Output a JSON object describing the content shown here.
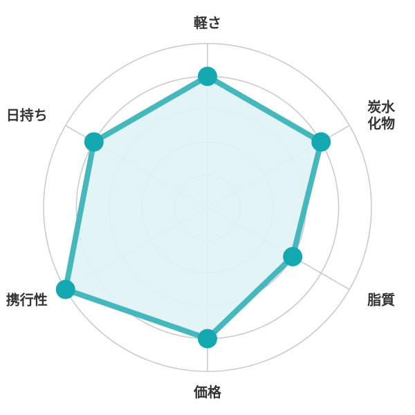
{
  "chart_data": {
    "type": "radar",
    "title": "",
    "axes": [
      {
        "label": [
          "軽さ"
        ]
      },
      {
        "label": [
          "炭水",
          "化物"
        ]
      },
      {
        "label": [
          "脂質"
        ]
      },
      {
        "label": [
          "価格"
        ]
      },
      {
        "label": [
          "携行性"
        ]
      },
      {
        "label": [
          "日持ち"
        ]
      }
    ],
    "rlim": [
      0,
      5
    ],
    "ring_count": 5,
    "series": [
      {
        "values": [
          4,
          4,
          3,
          4,
          5,
          4
        ]
      }
    ],
    "colors": {
      "line": "#45b8bd",
      "fill": "#dff3f5",
      "marker": "#14a8b0",
      "grid": "#c8c8c8"
    },
    "grid": true
  }
}
